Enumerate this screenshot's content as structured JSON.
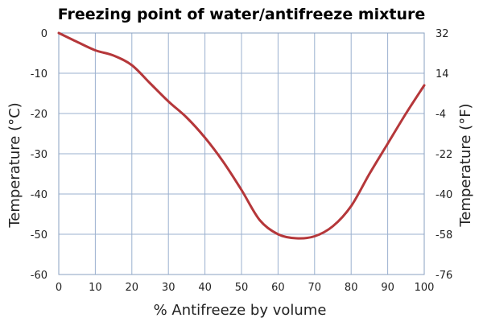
{
  "chart_data": {
    "type": "line",
    "title": "Freezing point of water/antifreeze mixture",
    "xlabel": "% Antifreeze by volume",
    "ylabel_left": "Temperature (°C)",
    "ylabel_right": "Temperature (°F)",
    "xlim": [
      0,
      100
    ],
    "ylim": [
      -60,
      0
    ],
    "grid": true,
    "x_ticks": [
      "0",
      "10",
      "20",
      "30",
      "40",
      "50",
      "60",
      "70",
      "80",
      "90",
      "100"
    ],
    "y_ticks_left": [
      "0",
      "-10",
      "-20",
      "-30",
      "-40",
      "-50",
      "-60"
    ],
    "y_ticks_right": [
      "32",
      "14",
      "-4",
      "-22",
      "-40",
      "-58",
      "-76"
    ],
    "series": [
      {
        "color": "#b5373a",
        "x": [
          0,
          5,
          10,
          15,
          20,
          25,
          30,
          35,
          40,
          45,
          50,
          55,
          60,
          65,
          70,
          75,
          80,
          85,
          90,
          95,
          100
        ],
        "y": [
          0,
          -2.2,
          -4.3,
          -5.6,
          -8.0,
          -12.5,
          -17.0,
          -21.0,
          -26.0,
          -32.0,
          -39.0,
          -46.5,
          -50.0,
          -51.0,
          -50.5,
          -48.0,
          -43.0,
          -35.0,
          -27.5,
          -20.0,
          -13.0
        ]
      }
    ]
  }
}
